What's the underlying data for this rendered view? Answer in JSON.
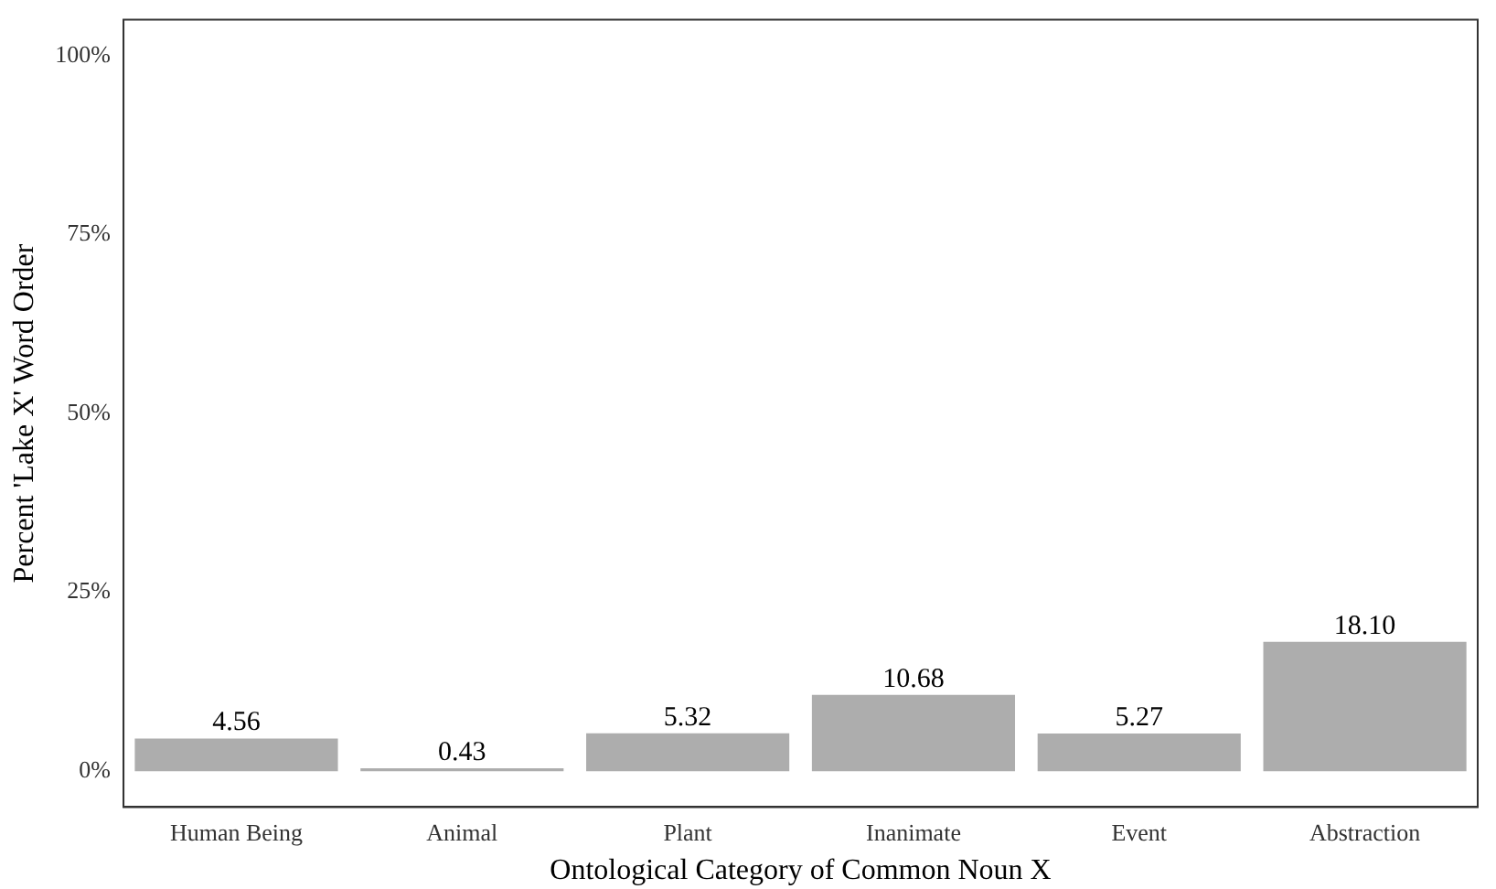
{
  "chart_data": {
    "type": "bar",
    "xlabel": "Ontological Category of Common Noun X",
    "ylabel": "Percent 'Lake X' Word Order",
    "categories": [
      "Human Being",
      "Animal",
      "Plant",
      "Inanimate",
      "Event",
      "Abstraction"
    ],
    "values": [
      4.56,
      0.43,
      5.32,
      10.68,
      5.27,
      18.1
    ],
    "value_labels": [
      "4.56",
      "0.43",
      "5.32",
      "10.68",
      "5.27",
      "18.10"
    ],
    "color": "#adadad",
    "ylim": [
      -5,
      105
    ],
    "yticks": [
      {
        "value": 0,
        "label": "0%"
      },
      {
        "value": 25,
        "label": "25%"
      },
      {
        "value": 50,
        "label": "50%"
      },
      {
        "value": 75,
        "label": "75%"
      },
      {
        "value": 100,
        "label": "100%"
      }
    ],
    "grid": false,
    "legend": false
  }
}
